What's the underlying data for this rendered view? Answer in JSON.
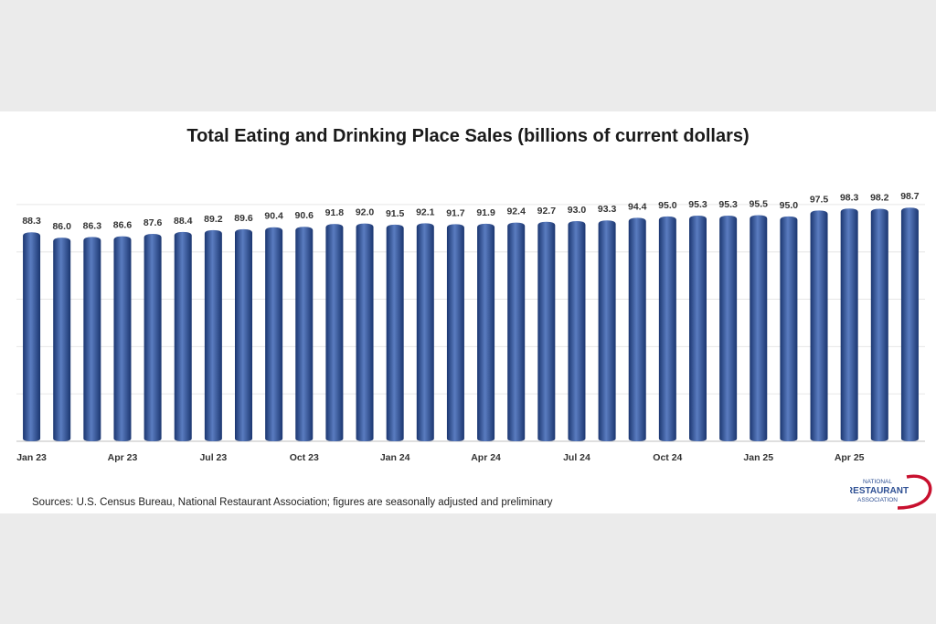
{
  "chart_data": {
    "type": "bar",
    "title": "Total Eating and Drinking Place Sales (billions of current dollars)",
    "categories": [
      "Jan 23",
      "Feb 23",
      "Mar 23",
      "Apr 23",
      "May 23",
      "Jun 23",
      "Jul 23",
      "Aug 23",
      "Sep 23",
      "Oct 23",
      "Nov 23",
      "Dec 23",
      "Jan 24",
      "Feb 24",
      "Mar 24",
      "Apr 24",
      "May 24",
      "Jun 24",
      "Jul 24",
      "Aug 24",
      "Sep 24",
      "Oct 24",
      "Nov 24",
      "Dec 24",
      "Jan 25",
      "Feb 25",
      "Mar 25",
      "Apr 25",
      "May 25",
      "Jun 25"
    ],
    "x_tick_labels": [
      "Jan 23",
      "",
      "",
      "Apr 23",
      "",
      "",
      "Jul 23",
      "",
      "",
      "Oct 23",
      "",
      "",
      "Jan 24",
      "",
      "",
      "Apr 24",
      "",
      "",
      "Jul 24",
      "",
      "",
      "Oct 24",
      "",
      "",
      "Jan 25",
      "",
      "",
      "Apr 25",
      "",
      ""
    ],
    "values": [
      88.3,
      86.0,
      86.3,
      86.6,
      87.6,
      88.4,
      89.2,
      89.6,
      90.4,
      90.6,
      91.8,
      92.0,
      91.5,
      92.1,
      91.7,
      91.9,
      92.4,
      92.7,
      93.0,
      93.3,
      94.4,
      95.0,
      95.3,
      95.3,
      95.5,
      95.0,
      97.5,
      98.3,
      98.2,
      98.7
    ],
    "value_labels": [
      "88.3",
      "86.0",
      "86.3",
      "86.6",
      "87.6",
      "88.4",
      "89.2",
      "89.6",
      "90.4",
      "90.6",
      "91.8",
      "92.0",
      "91.5",
      "92.1",
      "91.7",
      "91.9",
      "92.4",
      "92.7",
      "93.0",
      "93.3",
      "94.4",
      "95.0",
      "95.3",
      "95.3",
      "95.5",
      "95.0",
      "97.5",
      "98.3",
      "98.2",
      "98.7"
    ],
    "ylim": [
      0,
      115
    ],
    "grid": true,
    "xlabel": "",
    "ylabel": "",
    "bar_color": "#2d4f93",
    "bar_color_light": "#5a7cc0",
    "bar_color_dark": "#1b3670"
  },
  "source_note": "Sources: U.S. Census Bureau, National Restaurant Association; figures are seasonally adjusted and preliminary",
  "logo": {
    "line1": "NATIONAL",
    "line2": "RESTAURANT",
    "line3": "ASSOCIATION",
    "accent_color": "#c8102e",
    "text_color": "#2d4f93"
  }
}
